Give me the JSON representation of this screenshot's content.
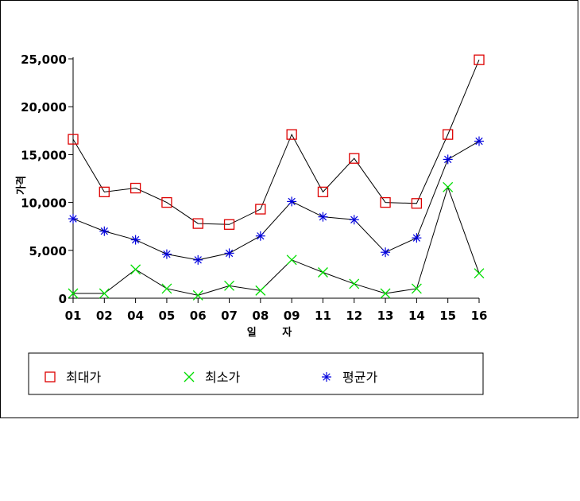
{
  "chart_data": {
    "type": "line",
    "xlabel": "일 자",
    "ylabel": "가격",
    "categories": [
      "01",
      "02",
      "04",
      "05",
      "06",
      "07",
      "08",
      "09",
      "11",
      "12",
      "13",
      "14",
      "15",
      "16"
    ],
    "ylim": [
      0,
      25000
    ],
    "yticks": [
      0,
      5000,
      10000,
      15000,
      20000,
      25000
    ],
    "ytick_labels": [
      "0",
      "5,000",
      "10,000",
      "15,000",
      "20,000",
      "25,000"
    ],
    "grid": false,
    "legend_position": "bottom",
    "series": [
      {
        "name": "최대가",
        "marker": "square",
        "color": "#dd0000",
        "values": [
          16600,
          11100,
          11500,
          10000,
          7800,
          7700,
          9300,
          17100,
          11100,
          14600,
          10000,
          9900,
          17100,
          24900
        ]
      },
      {
        "name": "최소가",
        "marker": "x",
        "color": "#00dd00",
        "values": [
          500,
          500,
          3000,
          1000,
          300,
          1300,
          800,
          4000,
          2700,
          1500,
          500,
          1000,
          11600,
          2600
        ]
      },
      {
        "name": "평균가",
        "marker": "asterisk",
        "color": "#0000dd",
        "values": [
          8300,
          7000,
          6100,
          4600,
          4000,
          4700,
          6500,
          10100,
          8500,
          8200,
          4800,
          6300,
          14500,
          16400
        ]
      }
    ]
  }
}
